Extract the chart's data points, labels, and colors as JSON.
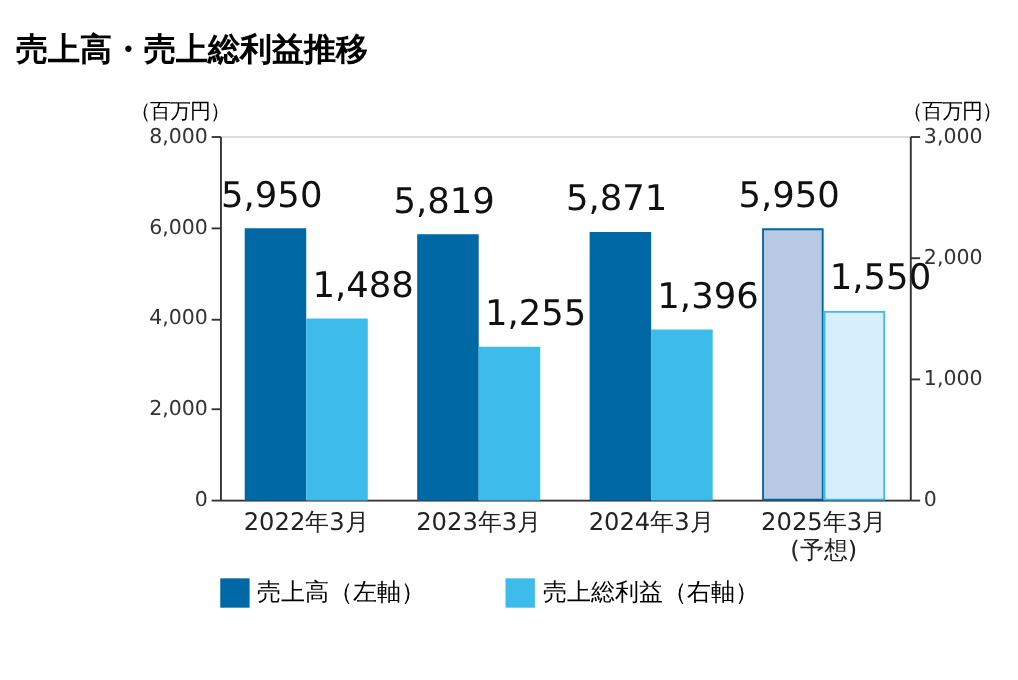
{
  "chart_data": {
    "type": "bar",
    "title": "売上高・売上総利益推移",
    "categories": [
      "2022年3月",
      "2023年3月",
      "2024年3月",
      "2025年3月\n(予想)"
    ],
    "series": [
      {
        "name": "売上高（左軸）",
        "color": "#0068a5",
        "colors": [
          "#0068a5",
          "#0068a5",
          "#0068a5",
          "#b7c9e3"
        ],
        "values": [
          5950,
          5819,
          5871,
          5950
        ],
        "value_labels": [
          "5,950",
          "5,819",
          "5,871",
          "5,950"
        ]
      },
      {
        "name": "売上総利益（右軸）",
        "color": "#3dbbeb",
        "colors": [
          "#3dbbeb",
          "#3dbbeb",
          "#3dbbeb",
          "#d7eefb"
        ],
        "values": [
          1488,
          1255,
          1396,
          1550
        ],
        "value_labels": [
          "1,488",
          "1,255",
          "1,396",
          "1,550"
        ],
        "axis": "y2"
      }
    ],
    "ylabel": "（百万円）",
    "y2label": "（百万円）",
    "ylim": [
      0,
      8000
    ],
    "yticks": [
      {
        "value": 0,
        "label": "0"
      },
      {
        "value": 2000,
        "label": "2,000"
      },
      {
        "value": 4000,
        "label": "4,000"
      },
      {
        "value": 6000,
        "label": "6,000"
      },
      {
        "value": 8000,
        "label": "8,000"
      }
    ],
    "y2lim": [
      0,
      3000
    ],
    "y2ticks": [
      {
        "value": 0,
        "label": "0"
      },
      {
        "value": 1000,
        "label": "1,000"
      },
      {
        "value": 2000,
        "label": "2,000"
      },
      {
        "value": 3000,
        "label": "3,000"
      }
    ],
    "grid": false,
    "legend": "bottom left"
  }
}
